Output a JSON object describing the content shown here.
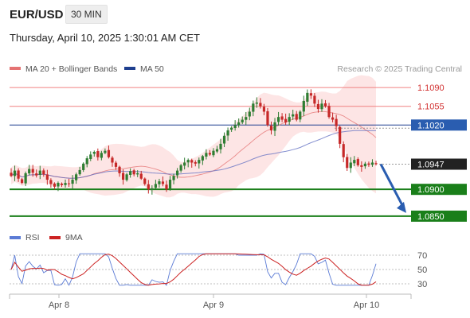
{
  "header": {
    "symbol": "EUR/USD",
    "timeframe": "30 MIN",
    "datetime": "Thursday, April 10, 2025 1:30:01 AM CET"
  },
  "legend": {
    "ma20_label": "MA 20 + Bollinger Bands",
    "ma50_label": "MA 50",
    "credit": "Research © 2025 Trading Central"
  },
  "colors": {
    "candle_up": "#2e7d32",
    "candle_down": "#c62828",
    "bollinger_fill": "#fcdcdc",
    "ma20": "#e57373",
    "ma50": "#5c6bc0",
    "resistance": "#f08080",
    "pivot": "#1f3f8f",
    "support": "#1a7f1a",
    "current": "#222222",
    "arrow": "#2a5db0",
    "rsi": "#5b7bd5",
    "rsi_ma": "#cc2222"
  },
  "chart_data": [
    {
      "type": "candlestick",
      "ylim": [
        1.0835,
        1.1105
      ],
      "x_ticks": [
        "Apr 8",
        "Apr 9",
        "Apr 10"
      ],
      "levels": [
        {
          "value": 1.109,
          "label": "1.1090",
          "kind": "resistance"
        },
        {
          "value": 1.1055,
          "label": "1.1055",
          "kind": "resistance"
        },
        {
          "value": 1.102,
          "label": "1.1020",
          "kind": "pivot"
        },
        {
          "value": 1.0947,
          "label": "1.0947",
          "kind": "current"
        },
        {
          "value": 1.09,
          "label": "1.0900",
          "kind": "support"
        },
        {
          "value": 1.085,
          "label": "1.0850",
          "kind": "support"
        }
      ],
      "arrow": {
        "from": 1.0947,
        "to": 1.085
      },
      "candles_close": [
        1.0925,
        1.0935,
        1.092,
        1.0912,
        1.093,
        1.0938,
        1.0931,
        1.0926,
        1.0935,
        1.0928,
        1.0918,
        1.091,
        1.0905,
        1.0912,
        1.0908,
        1.0912,
        1.091,
        1.0918,
        1.0928,
        1.0936,
        1.0948,
        1.0958,
        1.0965,
        1.097,
        1.096,
        1.0968,
        1.0972,
        1.096,
        1.095,
        1.0942,
        1.093,
        1.0918,
        1.0928,
        1.0934,
        1.0928,
        1.093,
        1.092,
        1.091,
        1.09,
        1.0902,
        1.091,
        1.0915,
        1.091,
        1.09,
        1.0918,
        1.0925,
        1.0935,
        1.0945,
        1.095,
        1.0955,
        1.095,
        1.0948,
        1.0955,
        1.0962,
        1.0968,
        1.0965,
        1.0972,
        1.0975,
        1.0985,
        1.1,
        1.101,
        1.1015,
        1.102,
        1.1025,
        1.103,
        1.1035,
        1.1045,
        1.106,
        1.1062,
        1.1055,
        1.1045,
        1.102,
        1.101,
        1.1025,
        1.1035,
        1.103,
        1.1025,
        1.1035,
        1.104,
        1.103,
        1.1045,
        1.1065,
        1.108,
        1.1075,
        1.106,
        1.105,
        1.106,
        1.1055,
        1.1035,
        1.103,
        1.1018,
        1.0985,
        1.096,
        1.094,
        1.095,
        1.0955,
        1.0945,
        1.0942,
        1.0948,
        1.0946,
        1.095,
        1.0947
      ]
    },
    {
      "type": "line",
      "series": [
        {
          "name": "RSI"
        },
        {
          "name": "9MA"
        }
      ],
      "y_ticks": [
        70,
        50,
        30
      ],
      "ylim": [
        20,
        80
      ]
    }
  ]
}
